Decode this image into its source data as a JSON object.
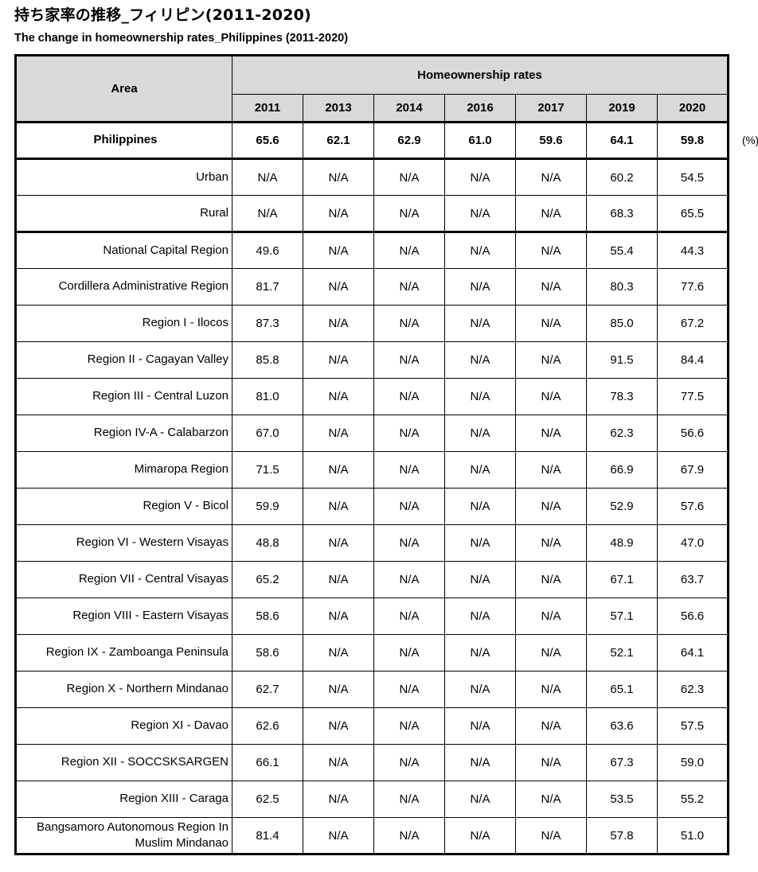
{
  "chart_data": {
    "type": "table",
    "title": "持ち家率の推移_フィリピン(2011-2020)",
    "subtitle": "The change in homeownership rates_Philippines (2011-2020)",
    "unit_label": "(%)",
    "corner_header": "Area",
    "group_header": "Homeownership rates",
    "columns": [
      "2011",
      "2013",
      "2014",
      "2016",
      "2017",
      "2019",
      "2020"
    ],
    "rows": [
      {
        "area": "Philippines",
        "values": [
          "65.6",
          "62.1",
          "62.9",
          "61.0",
          "59.6",
          "64.1",
          "59.8"
        ],
        "emphasis": true,
        "thick_bottom": true
      },
      {
        "area": "Urban",
        "values": [
          "N/A",
          "N/A",
          "N/A",
          "N/A",
          "N/A",
          "60.2",
          "54.5"
        ]
      },
      {
        "area": "Rural",
        "values": [
          "N/A",
          "N/A",
          "N/A",
          "N/A",
          "N/A",
          "68.3",
          "65.5"
        ],
        "thick_bottom": true
      },
      {
        "area": "National Capital Region",
        "values": [
          "49.6",
          "N/A",
          "N/A",
          "N/A",
          "N/A",
          "55.4",
          "44.3"
        ]
      },
      {
        "area": "Cordillera Administrative Region",
        "values": [
          "81.7",
          "N/A",
          "N/A",
          "N/A",
          "N/A",
          "80.3",
          "77.6"
        ]
      },
      {
        "area": "Region I - Ilocos",
        "values": [
          "87.3",
          "N/A",
          "N/A",
          "N/A",
          "N/A",
          "85.0",
          "67.2"
        ]
      },
      {
        "area": "Region II - Cagayan Valley",
        "values": [
          "85.8",
          "N/A",
          "N/A",
          "N/A",
          "N/A",
          "91.5",
          "84.4"
        ]
      },
      {
        "area": "Region III - Central Luzon",
        "values": [
          "81.0",
          "N/A",
          "N/A",
          "N/A",
          "N/A",
          "78.3",
          "77.5"
        ]
      },
      {
        "area": "Region IV-A - Calabarzon",
        "values": [
          "67.0",
          "N/A",
          "N/A",
          "N/A",
          "N/A",
          "62.3",
          "56.6"
        ]
      },
      {
        "area": "Mimaropa Region",
        "values": [
          "71.5",
          "N/A",
          "N/A",
          "N/A",
          "N/A",
          "66.9",
          "67.9"
        ]
      },
      {
        "area": "Region V - Bicol",
        "values": [
          "59.9",
          "N/A",
          "N/A",
          "N/A",
          "N/A",
          "52.9",
          "57.6"
        ]
      },
      {
        "area": "Region VI - Western Visayas",
        "values": [
          "48.8",
          "N/A",
          "N/A",
          "N/A",
          "N/A",
          "48.9",
          "47.0"
        ]
      },
      {
        "area": "Region VII - Central Visayas",
        "values": [
          "65.2",
          "N/A",
          "N/A",
          "N/A",
          "N/A",
          "67.1",
          "63.7"
        ]
      },
      {
        "area": "Region VIII - Eastern Visayas",
        "values": [
          "58.6",
          "N/A",
          "N/A",
          "N/A",
          "N/A",
          "57.1",
          "56.6"
        ]
      },
      {
        "area": "Region IX - Zamboanga Peninsula",
        "values": [
          "58.6",
          "N/A",
          "N/A",
          "N/A",
          "N/A",
          "52.1",
          "64.1"
        ]
      },
      {
        "area": "Region X - Northern Mindanao",
        "values": [
          "62.7",
          "N/A",
          "N/A",
          "N/A",
          "N/A",
          "65.1",
          "62.3"
        ]
      },
      {
        "area": "Region XI - Davao",
        "values": [
          "62.6",
          "N/A",
          "N/A",
          "N/A",
          "N/A",
          "63.6",
          "57.5"
        ]
      },
      {
        "area": "Region XII - SOCCSKSARGEN",
        "values": [
          "66.1",
          "N/A",
          "N/A",
          "N/A",
          "N/A",
          "67.3",
          "59.0"
        ]
      },
      {
        "area": "Region XIII - Caraga",
        "values": [
          "62.5",
          "N/A",
          "N/A",
          "N/A",
          "N/A",
          "53.5",
          "55.2"
        ]
      },
      {
        "area": "Bangsamoro Autonomous Region In Muslim Mindanao",
        "values": [
          "81.4",
          "N/A",
          "N/A",
          "N/A",
          "N/A",
          "57.8",
          "51.0"
        ]
      }
    ],
    "layout": {
      "header_bg": "#d9d9d9",
      "border_color": "#000000",
      "text_color": "#000000",
      "page_bg": "#ffffff",
      "legend": "none",
      "grid": "full-borders"
    }
  }
}
